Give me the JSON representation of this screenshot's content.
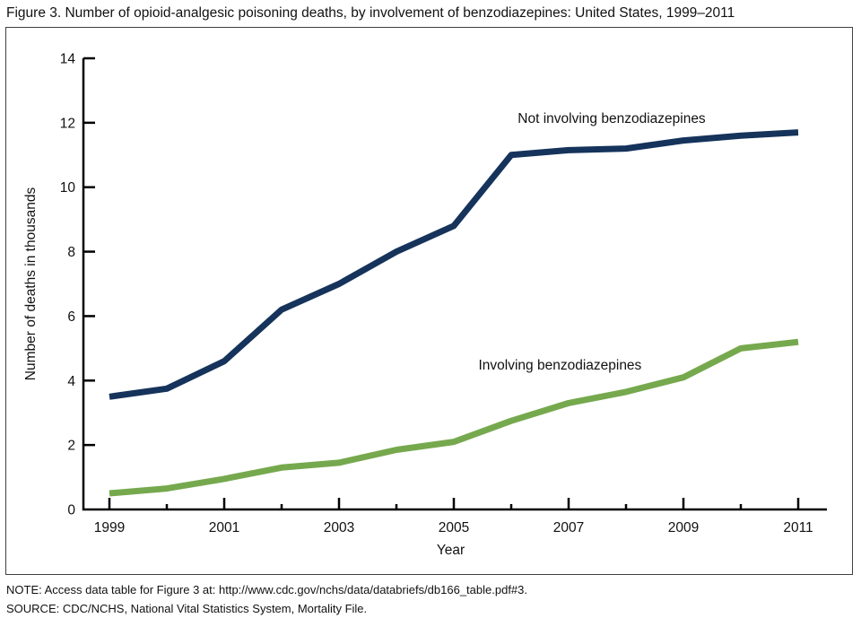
{
  "title": "Figure 3. Number of opioid-analgesic poisoning deaths, by involvement of benzodiazepines: United States, 1999–2011",
  "notes": {
    "note": "NOTE: Access data table for Figure 3 at: http://www.cdc.gov/nchs/data/databriefs/db166_table.pdf#3.",
    "source": "SOURCE: CDC/NCHS, National Vital Statistics System, Mortality File."
  },
  "chart_data": {
    "type": "line",
    "x": [
      1999,
      2000,
      2001,
      2002,
      2003,
      2004,
      2005,
      2006,
      2007,
      2008,
      2009,
      2010,
      2011
    ],
    "series": [
      {
        "name": "Not involving benzodiazepines",
        "color": "#15335b",
        "values": [
          3.5,
          3.75,
          4.6,
          6.2,
          7.0,
          8.0,
          8.8,
          11.0,
          11.15,
          11.2,
          11.45,
          11.6,
          11.7
        ]
      },
      {
        "name": "Involving benzodiazepines",
        "color": "#76a94e",
        "values": [
          0.5,
          0.65,
          0.95,
          1.3,
          1.45,
          1.85,
          2.1,
          2.75,
          3.3,
          3.65,
          4.1,
          5.0,
          5.2
        ]
      }
    ],
    "annotations": [
      {
        "text": "Not involving benzodiazepines",
        "x_year": 2007.75,
        "y_value": 12.15
      },
      {
        "text": "Involving benzodiazepines",
        "x_year": 2006.85,
        "y_value": 4.5
      }
    ],
    "xlabel": "Year",
    "ylabel": "Number of deaths in thousands",
    "ylim": [
      0,
      14
    ],
    "yticks": [
      0,
      2,
      4,
      6,
      8,
      10,
      12,
      14
    ],
    "xticks_labeled": [
      1999,
      2001,
      2003,
      2005,
      2007,
      2009,
      2011
    ],
    "axis_color": "#000000",
    "grid": false,
    "legend_position": "inline annotations"
  }
}
